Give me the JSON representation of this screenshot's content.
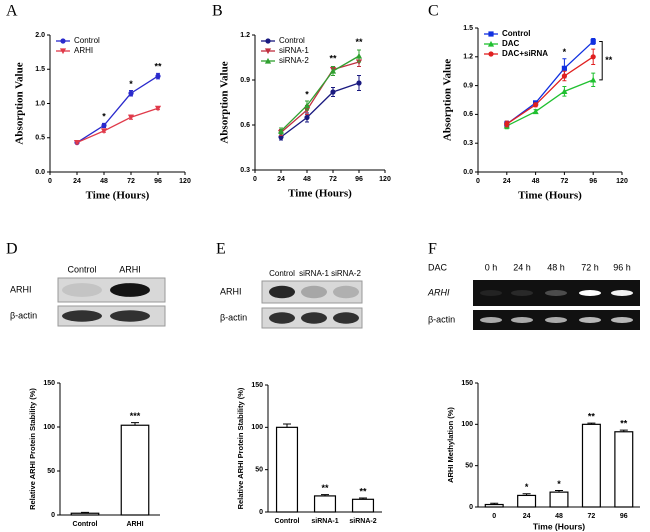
{
  "chart_data": [
    {
      "type": "line",
      "panel": "A",
      "ylabel": "Absorption Value",
      "xlabel": "Time (Hours)",
      "x": [
        24,
        48,
        72,
        96
      ],
      "xlim": [
        0,
        120
      ],
      "xticks": [
        0,
        24,
        48,
        72,
        96,
        120
      ],
      "ylim": [
        0,
        2
      ],
      "yticks": [
        {
          "value": 0,
          "label": "0.0"
        },
        {
          "value": 0.5,
          "label": "0.5"
        },
        {
          "value": 1,
          "label": "1.0"
        },
        {
          "value": 1.5,
          "label": "1.5"
        },
        {
          "value": 2,
          "label": "2.0"
        }
      ],
      "legend": "upper left",
      "series": [
        {
          "name": "Control",
          "color": "#2a2acc",
          "marker": "circle",
          "values": [
            0.43,
            0.68,
            1.15,
            1.4
          ],
          "errors": [
            0.02,
            0.03,
            0.04,
            0.04
          ]
        },
        {
          "name": "ARHI",
          "color": "#e03a4a",
          "marker": "triangle-down",
          "values": [
            0.43,
            0.6,
            0.8,
            0.93
          ],
          "errors": [
            0.02,
            0.02,
            0.03,
            0.02
          ]
        }
      ],
      "annotations": [
        {
          "text": "*",
          "x": 48
        },
        {
          "text": "*",
          "x": 72
        },
        {
          "text": "**",
          "x": 96
        }
      ]
    },
    {
      "type": "line",
      "panel": "B",
      "ylabel": "Absorption Value",
      "xlabel": "Time (Hours)",
      "x": [
        24,
        48,
        72,
        96
      ],
      "xlim": [
        0,
        120
      ],
      "xticks": [
        0,
        24,
        48,
        72,
        96,
        120
      ],
      "ylim": [
        0.3,
        1.2
      ],
      "yticks": [
        0.3,
        0.6,
        0.9,
        1.2
      ],
      "legend": "upper left",
      "series": [
        {
          "name": "Control",
          "color": "#1a1a80",
          "marker": "circle",
          "values": [
            0.52,
            0.65,
            0.82,
            0.88
          ],
          "errors": [
            0.02,
            0.03,
            0.03,
            0.05
          ]
        },
        {
          "name": "siRNA-1",
          "color": "#c03040",
          "marker": "triangle-down",
          "values": [
            0.55,
            0.7,
            0.97,
            1.02
          ],
          "errors": [
            0.02,
            0.03,
            0.02,
            0.03
          ]
        },
        {
          "name": "siRNA-2",
          "color": "#30a030",
          "marker": "triangle",
          "values": [
            0.56,
            0.73,
            0.96,
            1.06
          ],
          "errors": [
            0.02,
            0.03,
            0.03,
            0.04
          ]
        }
      ],
      "annotations": [
        {
          "text": "*",
          "x": 48
        },
        {
          "text": "**",
          "x": 72
        },
        {
          "text": "**",
          "x": 96
        }
      ]
    },
    {
      "type": "line",
      "panel": "C",
      "ylabel": "Absorption Value",
      "xlabel": "Time (Hours)",
      "x": [
        24,
        48,
        72,
        96
      ],
      "xlim": [
        0,
        120
      ],
      "xticks": [
        0,
        24,
        48,
        72,
        96,
        120
      ],
      "ylim": [
        0,
        1.5
      ],
      "yticks": [
        {
          "value": 0,
          "label": "0.0"
        },
        {
          "value": 0.3,
          "label": "0.3"
        },
        {
          "value": 0.6,
          "label": "0.6"
        },
        {
          "value": 0.9,
          "label": "0.9"
        },
        {
          "value": 1.2,
          "label": "1.2"
        },
        {
          "value": 1.5,
          "label": "1.5"
        }
      ],
      "legend": "upper left",
      "series": [
        {
          "name": "Control",
          "color": "#1030e0",
          "marker": "square",
          "values": [
            0.5,
            0.72,
            1.08,
            1.36
          ],
          "errors": [
            0.03,
            0.02,
            0.1,
            0.03
          ]
        },
        {
          "name": "DAC",
          "color": "#20c030",
          "marker": "triangle",
          "values": [
            0.48,
            0.63,
            0.84,
            0.96
          ],
          "errors": [
            0.03,
            0.02,
            0.05,
            0.07
          ]
        },
        {
          "name": "DAC+siRNA",
          "color": "#e02020",
          "marker": "circle",
          "values": [
            0.5,
            0.7,
            1.0,
            1.2
          ],
          "errors": [
            0.03,
            0.02,
            0.05,
            0.08
          ]
        }
      ],
      "annotations": [
        {
          "text": "*",
          "x": 72
        },
        {
          "text": "**",
          "x": 96,
          "bracket": true
        }
      ]
    },
    {
      "type": "bar",
      "ylabel": "Relative ARHI Protein Stability (%)",
      "categories": [
        "Control",
        "ARHI"
      ],
      "values": [
        2,
        102
      ],
      "errors": [
        1,
        3
      ],
      "color": "#ffffff",
      "ylim": [
        0,
        150
      ],
      "yticks": [
        0,
        50,
        100,
        150
      ],
      "annotations": [
        {
          "text": "***",
          "category": "ARHI"
        }
      ]
    },
    {
      "type": "bar",
      "ylabel": "Relative ARHI Protein Stability (%)",
      "categories": [
        "Control",
        "siRNA-1",
        "siRNA-2"
      ],
      "values": [
        100,
        19,
        15
      ],
      "errors": [
        4,
        1.5,
        1.5
      ],
      "color": "#ffffff",
      "ylim": [
        0,
        150
      ],
      "yticks": [
        0,
        50,
        100,
        150
      ],
      "annotations": [
        {
          "text": "**",
          "category": "siRNA-1"
        },
        {
          "text": "**",
          "category": "siRNA-2"
        }
      ]
    },
    {
      "type": "bar",
      "ylabel": "ARHI Methylation  (%)",
      "xlabel": "Time (Hours)",
      "categories": [
        "0",
        "24",
        "48",
        "72",
        "96"
      ],
      "values": [
        3,
        14,
        18,
        100,
        91
      ],
      "errors": [
        1.5,
        2,
        2,
        1.5,
        2
      ],
      "color": "#ffffff",
      "ylim": [
        0,
        150
      ],
      "yticks": [
        0,
        50,
        100,
        150
      ],
      "annotations": [
        {
          "text": "*",
          "category": "24"
        },
        {
          "text": "*",
          "category": "48"
        },
        {
          "text": "**",
          "category": "72"
        },
        {
          "text": "**",
          "category": "96"
        }
      ]
    }
  ],
  "blots": [
    {
      "panel": "D",
      "columns": [
        "Control",
        "ARHI"
      ],
      "rows": [
        "ARHI",
        "β-actin"
      ]
    },
    {
      "panel": "E",
      "columns": [
        "Control",
        "siRNA-1",
        "siRNA-2"
      ],
      "rows": [
        "ARHI",
        "β-actin"
      ]
    },
    {
      "panel": "F",
      "header": "DAC",
      "columns": [
        "0 h",
        "24 h",
        "48 h",
        "72 h",
        "96 h"
      ],
      "rows": [
        "ARHI",
        "β-actin"
      ]
    }
  ]
}
